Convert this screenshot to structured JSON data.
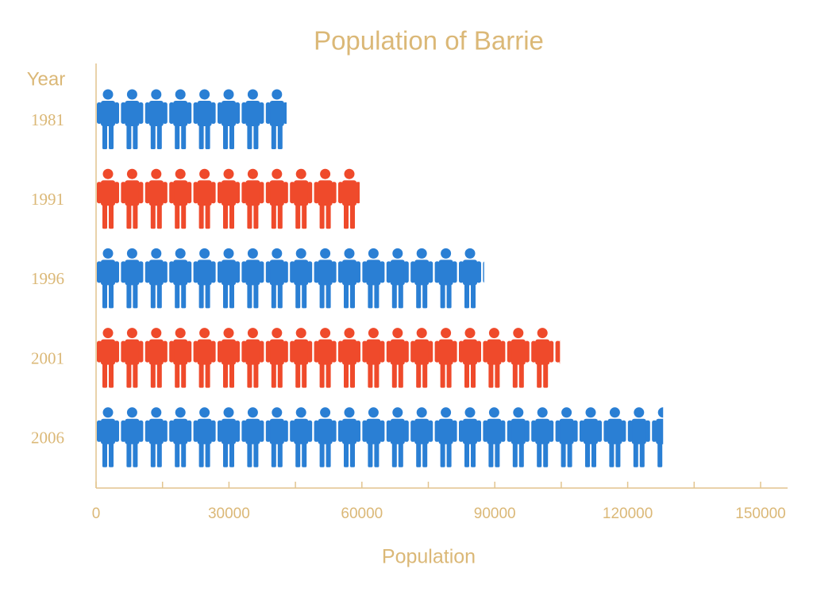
{
  "chart_data": {
    "type": "pictograph",
    "title": "Population of Barrie",
    "x_label": "Population",
    "y_label": "Year",
    "categories": [
      "1981",
      "1991",
      "1996",
      "2001",
      "2006"
    ],
    "values": [
      43000,
      59500,
      87600,
      104700,
      128000
    ],
    "colors": [
      "#2a7fd4",
      "#ef4a2b",
      "#2a7fd4",
      "#ef4a2b",
      "#2a7fd4"
    ],
    "xlim": [
      0,
      150000
    ],
    "xticks": [
      0,
      30000,
      60000,
      90000,
      120000,
      150000
    ],
    "xminorticks": [
      15000,
      45000,
      75000,
      105000,
      135000
    ]
  }
}
